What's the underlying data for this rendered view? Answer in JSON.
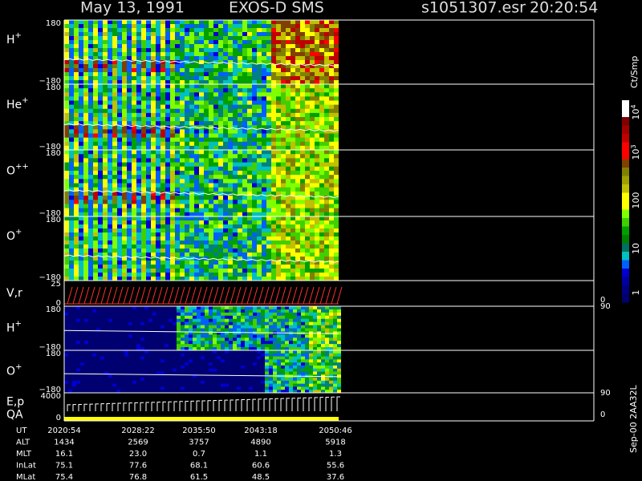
{
  "header": {
    "date": "May 13, 1991",
    "instrument": "EXOS-D SMS",
    "file": "s1051307.esr",
    "time": "20:20:54"
  },
  "panels": [
    {
      "label": "H",
      "sup": "+",
      "top": "180",
      "bottom": "−180"
    },
    {
      "label": "He",
      "sup": "+",
      "top": "180",
      "bottom": "−180"
    },
    {
      "label": "O",
      "sup": "++",
      "top": "180",
      "bottom": "−180"
    },
    {
      "label": "O",
      "sup": "+",
      "top": "180",
      "bottom": "−180"
    },
    {
      "label": "V,r",
      "sup": "",
      "top": "25",
      "bottom": "0",
      "right_top": "90",
      "right_bottom": "0"
    },
    {
      "label": "H",
      "sup": "+",
      "top": "180",
      "bottom": "−180"
    },
    {
      "label": "O",
      "sup": "+",
      "top": "180",
      "bottom": "−180",
      "right_top": "90"
    },
    {
      "label": "E,p",
      "label2": "QA",
      "sup": "",
      "top": "4000",
      "bottom": "0",
      "right_bottom": "0"
    }
  ],
  "colorbar": {
    "unit": "Ct/Smp",
    "labels": [
      {
        "base": "10",
        "exp": "4"
      },
      {
        "base": "10",
        "exp": "3"
      },
      {
        "base": "100",
        "exp": ""
      },
      {
        "base": "10",
        "exp": ""
      },
      {
        "base": "1",
        "exp": ""
      }
    ]
  },
  "footer": {
    "rows": [
      {
        "name": "UT",
        "values": [
          "2020:54",
          "2028:22",
          "2035:50",
          "2043:18",
          "2050:46"
        ]
      },
      {
        "name": "ALT",
        "values": [
          "1434",
          "2569",
          "3757",
          "4890",
          "5918"
        ]
      },
      {
        "name": "MLT",
        "values": [
          "16.1",
          "23.0",
          "0.7",
          "1.1",
          "1.3"
        ]
      },
      {
        "name": "InLat",
        "values": [
          "75.1",
          "77.6",
          "68.1",
          "60.6",
          "55.6"
        ]
      },
      {
        "name": "MLat",
        "values": [
          "75.4",
          "76.8",
          "61.5",
          "48.5",
          "37.6"
        ]
      }
    ]
  },
  "stamp": "Sep-00 2AA32L"
}
